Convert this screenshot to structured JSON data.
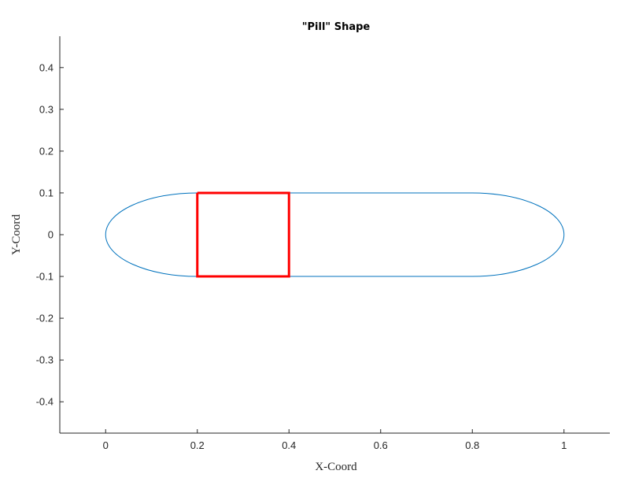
{
  "chart_data": {
    "type": "line",
    "title": "\"Pill\" Shape",
    "xlabel": "X-Coord",
    "ylabel": "Y-Coord",
    "xlim": [
      -0.1,
      1.1
    ],
    "ylim": [
      -0.475,
      0.475
    ],
    "xticks": [
      0,
      0.2,
      0.4,
      0.6,
      0.8,
      1
    ],
    "xtick_labels": [
      "0",
      "0.2",
      "0.4",
      "0.6",
      "0.8",
      "1"
    ],
    "yticks": [
      -0.4,
      -0.3,
      -0.2,
      -0.1,
      0,
      0.1,
      0.2,
      0.3,
      0.4
    ],
    "ytick_labels": [
      "-0.4",
      "-0.3",
      "-0.2",
      "-0.1",
      "0",
      "0.1",
      "0.2",
      "0.3",
      "0.4"
    ],
    "grid": false,
    "box": false,
    "series": [
      {
        "kind": "pill-outline",
        "color": "#0072BD",
        "center_left": [
          0.2,
          0
        ],
        "center_right": [
          0.8,
          0
        ],
        "half_height": 0.1,
        "cap_x_radius": 0.2,
        "x": [
          0,
          0.2,
          0.8,
          1,
          0.8,
          0.2,
          0
        ],
        "y": [
          0,
          0.1,
          0.1,
          0,
          -0.1,
          -0.1,
          0
        ]
      },
      {
        "kind": "rectangle",
        "color": "#FF0000",
        "x": [
          0.2,
          0.4,
          0.4,
          0.2,
          0.2
        ],
        "y": [
          0.1,
          0.1,
          -0.1,
          -0.1,
          0.1
        ]
      }
    ]
  }
}
